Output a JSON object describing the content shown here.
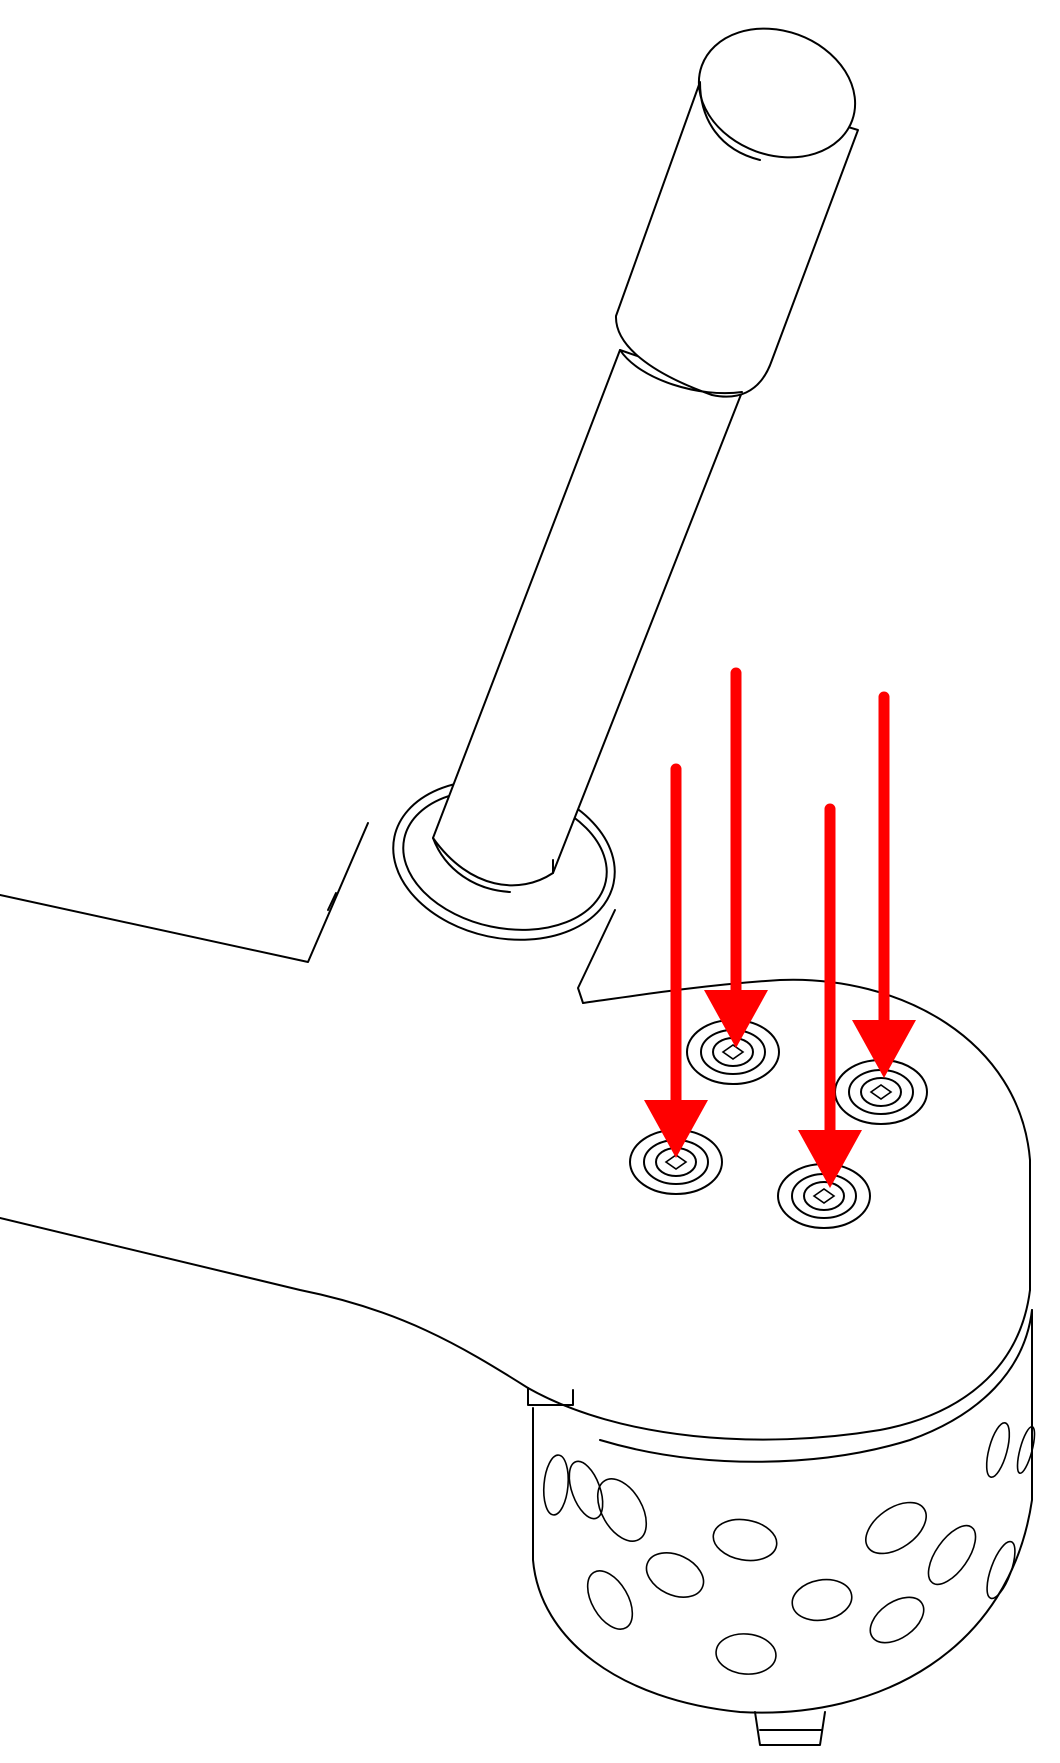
{
  "figure": {
    "subject": "assembly-step",
    "accent_color": "#ff0000",
    "line_color": "#000000",
    "background_color": "#ffffff"
  },
  "screws": [
    {
      "id": "screw-1",
      "label": ""
    },
    {
      "id": "screw-2",
      "label": ""
    },
    {
      "id": "screw-3",
      "label": ""
    },
    {
      "id": "screw-4",
      "label": ""
    }
  ],
  "arrows": [
    {
      "id": "arrow-1",
      "direction": "down"
    },
    {
      "id": "arrow-2",
      "direction": "down"
    },
    {
      "id": "arrow-3",
      "direction": "down"
    },
    {
      "id": "arrow-4",
      "direction": "down"
    }
  ]
}
